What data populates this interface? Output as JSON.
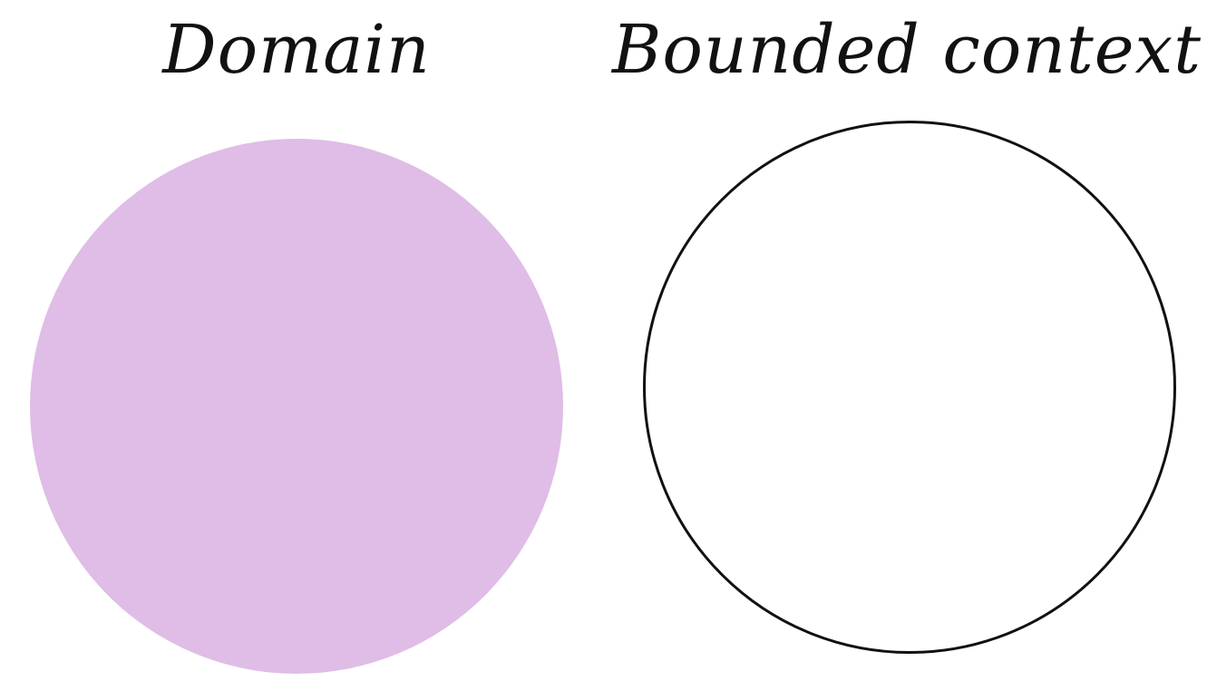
{
  "diagram": {
    "domain": {
      "label": "Domain",
      "fill_color": "#dfbde6"
    },
    "bounded_context": {
      "label": "Bounded context",
      "stroke_color": "#111111",
      "fill_color": "#ffffff"
    }
  }
}
